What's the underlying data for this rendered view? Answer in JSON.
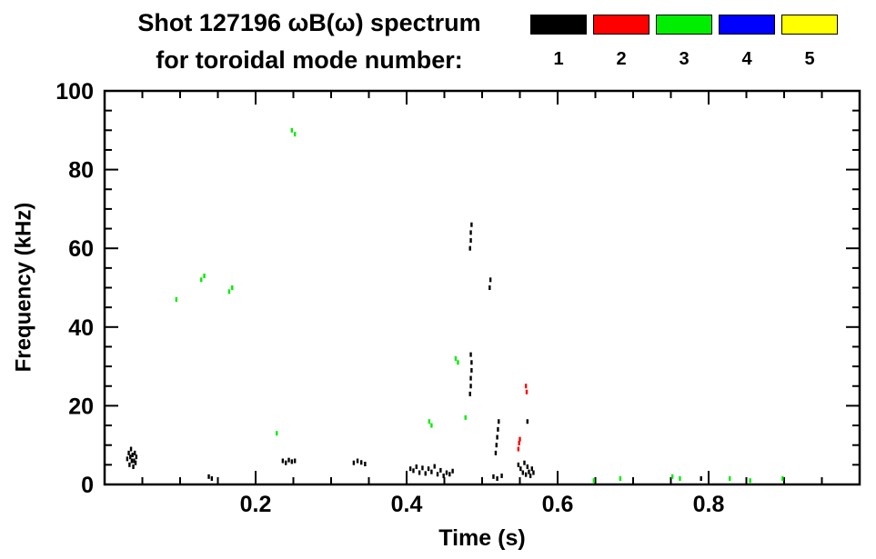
{
  "page": {
    "background": "#ffffff"
  },
  "header": {
    "title_line1": "Shot 127196 ωB(ω) spectrum",
    "title_line2": "for toroidal mode number:"
  },
  "chart_data": {
    "type": "scatter",
    "title": "Shot 127196 ωB(ω) spectrum for toroidal mode number:",
    "xlabel": "Time (s)",
    "ylabel": "Frequency (kHz)",
    "xlim": [
      0,
      1.0
    ],
    "ylim": [
      0,
      100
    ],
    "x_major_ticks": [
      0.2,
      0.4,
      0.6,
      0.8
    ],
    "x_tick_labels": [
      "0.2",
      "0.4",
      "0.6",
      "0.8"
    ],
    "x_minor_step": 0.05,
    "y_major_ticks": [
      0,
      20,
      40,
      60,
      80,
      100
    ],
    "y_tick_labels": [
      "0",
      "20",
      "40",
      "60",
      "80",
      "100"
    ],
    "y_minor_step": 5,
    "grid": false,
    "legend": {
      "position": "top-right",
      "items": [
        {
          "label": "1",
          "color": "#000000"
        },
        {
          "label": "2",
          "color": "#ff0000"
        },
        {
          "label": "3",
          "color": "#00ee00"
        },
        {
          "label": "4",
          "color": "#0000ff"
        },
        {
          "label": "5",
          "color": "#ffff00"
        }
      ]
    },
    "series": [
      {
        "name": "n=1",
        "color": "#000000",
        "points": [
          [
            0.03,
            6.5
          ],
          [
            0.032,
            8
          ],
          [
            0.033,
            5
          ],
          [
            0.034,
            7
          ],
          [
            0.035,
            9
          ],
          [
            0.036,
            6
          ],
          [
            0.037,
            7.5
          ],
          [
            0.038,
            4.5
          ],
          [
            0.039,
            6
          ],
          [
            0.04,
            8
          ],
          [
            0.041,
            5.5
          ],
          [
            0.042,
            7
          ],
          [
            0.138,
            2
          ],
          [
            0.142,
            1.5
          ],
          [
            0.236,
            6
          ],
          [
            0.24,
            5.5
          ],
          [
            0.244,
            6.2
          ],
          [
            0.248,
            5.8
          ],
          [
            0.252,
            6
          ],
          [
            0.33,
            5.5
          ],
          [
            0.335,
            6
          ],
          [
            0.34,
            5.6
          ],
          [
            0.345,
            5.2
          ],
          [
            0.405,
            4
          ],
          [
            0.409,
            3.5
          ],
          [
            0.413,
            4.5
          ],
          [
            0.417,
            3
          ],
          [
            0.421,
            4.2
          ],
          [
            0.425,
            2.8
          ],
          [
            0.429,
            4
          ],
          [
            0.433,
            3.2
          ],
          [
            0.437,
            4.6
          ],
          [
            0.441,
            2.6
          ],
          [
            0.445,
            3.6
          ],
          [
            0.449,
            2.2
          ],
          [
            0.453,
            3
          ],
          [
            0.457,
            2.6
          ],
          [
            0.461,
            3.4
          ],
          [
            0.484,
            60
          ],
          [
            0.485,
            62
          ],
          [
            0.485,
            64
          ],
          [
            0.486,
            66
          ],
          [
            0.484,
            23
          ],
          [
            0.485,
            25
          ],
          [
            0.485,
            27
          ],
          [
            0.486,
            29
          ],
          [
            0.486,
            31
          ],
          [
            0.485,
            33
          ],
          [
            0.51,
            50
          ],
          [
            0.511,
            52
          ],
          [
            0.515,
            2
          ],
          [
            0.52,
            1.5
          ],
          [
            0.526,
            2.2
          ],
          [
            0.518,
            8
          ],
          [
            0.519,
            10
          ],
          [
            0.52,
            12
          ],
          [
            0.521,
            14
          ],
          [
            0.522,
            16
          ],
          [
            0.548,
            5
          ],
          [
            0.551,
            4
          ],
          [
            0.554,
            3
          ],
          [
            0.556,
            5.5
          ],
          [
            0.558,
            2.5
          ],
          [
            0.56,
            4.5
          ],
          [
            0.562,
            3.2
          ],
          [
            0.564,
            2.2
          ],
          [
            0.566,
            4
          ],
          [
            0.568,
            3
          ],
          [
            0.56,
            16
          ],
          [
            0.79,
            1.5
          ]
        ]
      },
      {
        "name": "n=2",
        "color": "#ff0000",
        "points": [
          [
            0.548,
            9
          ],
          [
            0.549,
            10.5
          ],
          [
            0.55,
            11.5
          ],
          [
            0.558,
            25
          ],
          [
            0.559,
            23.5
          ]
        ]
      },
      {
        "name": "n=3",
        "color": "#00ee00",
        "points": [
          [
            0.095,
            47
          ],
          [
            0.128,
            52
          ],
          [
            0.132,
            53
          ],
          [
            0.165,
            49
          ],
          [
            0.169,
            50
          ],
          [
            0.248,
            90
          ],
          [
            0.252,
            89
          ],
          [
            0.228,
            13
          ],
          [
            0.43,
            16
          ],
          [
            0.433,
            15
          ],
          [
            0.465,
            32
          ],
          [
            0.468,
            31
          ],
          [
            0.478,
            17
          ],
          [
            0.648,
            1
          ],
          [
            0.683,
            1.5
          ],
          [
            0.752,
            2
          ],
          [
            0.762,
            1.5
          ],
          [
            0.828,
            1.5
          ],
          [
            0.855,
            1
          ],
          [
            0.898,
            1.5
          ]
        ]
      },
      {
        "name": "n=4",
        "color": "#0000ff",
        "points": []
      },
      {
        "name": "n=5",
        "color": "#ffff00",
        "points": []
      }
    ]
  }
}
